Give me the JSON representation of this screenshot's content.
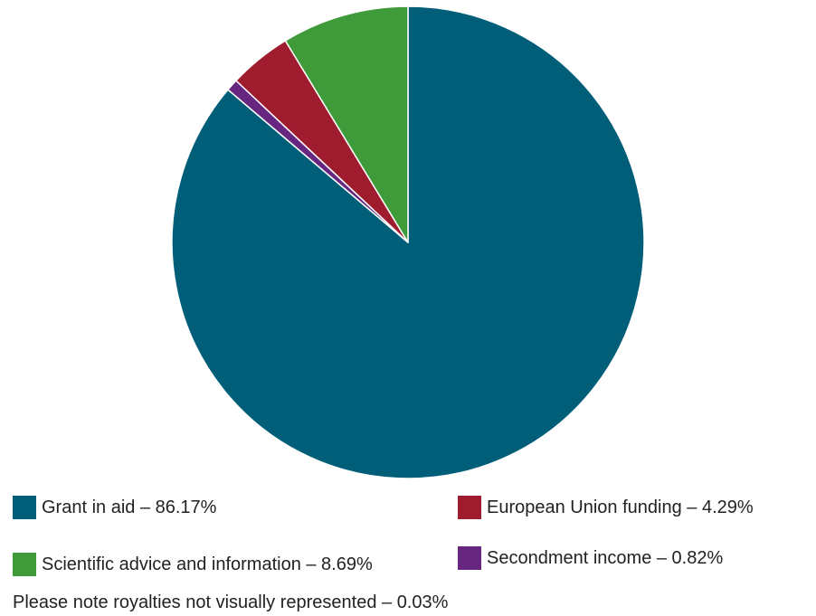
{
  "chart_data": {
    "type": "pie",
    "title": "",
    "slices": [
      {
        "label": "Grant in aid",
        "value": 86.17,
        "display": "Grant in aid – 86.17%",
        "color": "#005e78"
      },
      {
        "label": "European Union funding",
        "value": 4.29,
        "display": "European Union funding – 4.29%",
        "color": "#9e1c2e"
      },
      {
        "label": "Scientific advice and information",
        "value": 8.69,
        "display": "Scientific advice and information – 8.69%",
        "color": "#3f9a3a"
      },
      {
        "label": "Secondment income",
        "value": 0.82,
        "display": "Secondment income – 0.82%",
        "color": "#672680"
      }
    ],
    "draw_order": [
      "Grant in aid",
      "Secondment income",
      "European Union funding",
      "Scientific advice and information"
    ],
    "start": "12 o'clock",
    "direction": "clockwise",
    "legend_position": "bottom",
    "footnote": "Please note royalties not visually represented – 0.03%"
  }
}
